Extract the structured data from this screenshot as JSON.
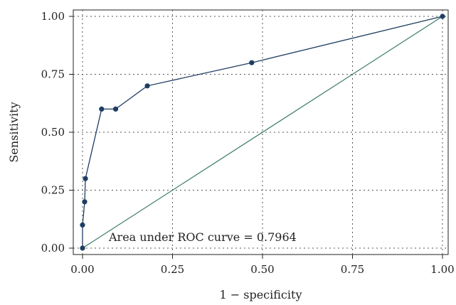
{
  "chart_data": {
    "type": "line",
    "title": "",
    "xlabel": "1 − specificity",
    "ylabel": "Sensitivity",
    "xlim": [
      0,
      1
    ],
    "ylim": [
      0,
      1
    ],
    "x_ticks": [
      "0.00",
      "0.25",
      "0.50",
      "0.75",
      "1.00"
    ],
    "y_ticks": [
      "0.00",
      "0.25",
      "0.50",
      "0.75",
      "1.00"
    ],
    "grid": true,
    "annotation": "Area under ROC curve = 0.7964",
    "series": [
      {
        "x": [
          0.0,
          0.0,
          0.006,
          0.008,
          0.053,
          0.092,
          0.18,
          0.47,
          1.0
        ],
        "y": [
          0.0,
          0.1,
          0.2,
          0.3,
          0.6,
          0.6,
          0.7,
          0.8,
          1.0
        ],
        "color": "#1f3d63"
      },
      {
        "x": [
          0,
          1
        ],
        "y": [
          0,
          1
        ],
        "color": "#3a7a6a"
      }
    ]
  }
}
